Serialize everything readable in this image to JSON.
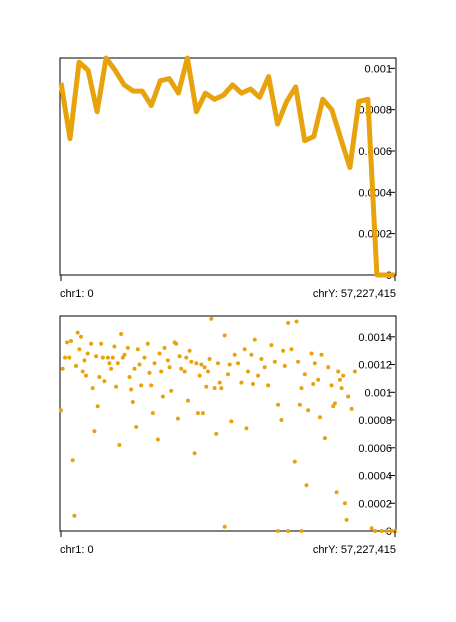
{
  "colors": {
    "series": "#E8A20C",
    "axis": "#000000",
    "background": "#ffffff"
  },
  "chart_data": [
    {
      "type": "line",
      "title": "",
      "x_start_label": "chr1: 0",
      "x_end_label": "chrY: 57,227,415",
      "ylim": [
        0,
        0.00105
      ],
      "y_ticks": [
        0,
        0.0002,
        0.0004,
        0.0006,
        0.0008,
        0.001
      ],
      "y_tick_labels": [
        "0",
        "0.0002",
        "0.0004",
        "0.0006",
        "0.0008",
        "0.001"
      ],
      "values": [
        0.00093,
        0.00066,
        0.00103,
        0.00099,
        0.00079,
        0.00105,
        0.00099,
        0.00092,
        0.00089,
        0.00089,
        0.00082,
        0.00094,
        0.00095,
        0.00088,
        0.00109,
        0.00079,
        0.00088,
        0.00085,
        0.00087,
        0.00092,
        0.00088,
        0.0009,
        0.00086,
        0.00096,
        0.00073,
        0.00084,
        0.00091,
        0.00065,
        0.00067,
        0.00085,
        0.0008,
        0.00066,
        0.00052,
        0.00084,
        0.00085,
        0.0,
        0.0,
        0.0
      ]
    },
    {
      "type": "scatter",
      "title": "",
      "x_start_label": "chr1: 0",
      "x_end_label": "chrY: 57,227,415",
      "ylim": [
        0,
        0.00155
      ],
      "y_ticks": [
        0,
        0.0002,
        0.0004,
        0.0006,
        0.0008,
        0.001,
        0.0012,
        0.0014
      ],
      "y_tick_labels": [
        "0",
        "0.0002",
        "0.0004",
        "0.0006",
        "0.0008",
        "0.001",
        "0.0012",
        "0.0014"
      ],
      "x_range": [
        0,
        1
      ],
      "points": [
        [
          0.0,
          0.00087
        ],
        [
          0.005,
          0.00117
        ],
        [
          0.012,
          0.00125
        ],
        [
          0.018,
          0.00136
        ],
        [
          0.025,
          0.00125
        ],
        [
          0.03,
          0.00137
        ],
        [
          0.035,
          0.00051
        ],
        [
          0.04,
          0.00011
        ],
        [
          0.045,
          0.00119
        ],
        [
          0.05,
          0.00143
        ],
        [
          0.055,
          0.00131
        ],
        [
          0.06,
          0.0014
        ],
        [
          0.065,
          0.00115
        ],
        [
          0.07,
          0.00123
        ],
        [
          0.075,
          0.00112
        ],
        [
          0.08,
          0.00128
        ],
        [
          0.09,
          0.00135
        ],
        [
          0.095,
          0.00103
        ],
        [
          0.1,
          0.00072
        ],
        [
          0.105,
          0.00126
        ],
        [
          0.11,
          0.0009
        ],
        [
          0.115,
          0.00111
        ],
        [
          0.12,
          0.00135
        ],
        [
          0.125,
          0.00125
        ],
        [
          0.13,
          0.00108
        ],
        [
          0.14,
          0.00125
        ],
        [
          0.145,
          0.00121
        ],
        [
          0.15,
          0.00117
        ],
        [
          0.155,
          0.00125
        ],
        [
          0.16,
          0.00133
        ],
        [
          0.165,
          0.00104
        ],
        [
          0.17,
          0.00121
        ],
        [
          0.175,
          0.00062
        ],
        [
          0.18,
          0.00142
        ],
        [
          0.185,
          0.00125
        ],
        [
          0.19,
          0.00127
        ],
        [
          0.2,
          0.00132
        ],
        [
          0.205,
          0.00111
        ],
        [
          0.21,
          0.00102
        ],
        [
          0.215,
          0.00093
        ],
        [
          0.22,
          0.00117
        ],
        [
          0.225,
          0.00075
        ],
        [
          0.23,
          0.00131
        ],
        [
          0.235,
          0.0012
        ],
        [
          0.24,
          0.00105
        ],
        [
          0.25,
          0.00125
        ],
        [
          0.26,
          0.00135
        ],
        [
          0.265,
          0.00114
        ],
        [
          0.27,
          0.00105
        ],
        [
          0.275,
          0.00085
        ],
        [
          0.28,
          0.00121
        ],
        [
          0.29,
          0.00066
        ],
        [
          0.295,
          0.00128
        ],
        [
          0.3,
          0.00115
        ],
        [
          0.305,
          0.00097
        ],
        [
          0.31,
          0.00132
        ],
        [
          0.32,
          0.00123
        ],
        [
          0.325,
          0.00118
        ],
        [
          0.33,
          0.00101
        ],
        [
          0.34,
          0.00136
        ],
        [
          0.345,
          0.00135
        ],
        [
          0.35,
          0.00081
        ],
        [
          0.355,
          0.00126
        ],
        [
          0.36,
          0.00117
        ],
        [
          0.37,
          0.00115
        ],
        [
          0.375,
          0.00125
        ],
        [
          0.38,
          0.00094
        ],
        [
          0.385,
          0.0013
        ],
        [
          0.39,
          0.00122
        ],
        [
          0.4,
          0.00056
        ],
        [
          0.405,
          0.00121
        ],
        [
          0.41,
          0.00085
        ],
        [
          0.415,
          0.00112
        ],
        [
          0.42,
          0.0012
        ],
        [
          0.425,
          0.00085
        ],
        [
          0.43,
          0.00118
        ],
        [
          0.435,
          0.00104
        ],
        [
          0.44,
          0.00115
        ],
        [
          0.445,
          0.00124
        ],
        [
          0.45,
          0.00153
        ],
        [
          0.46,
          0.00103
        ],
        [
          0.465,
          0.0007
        ],
        [
          0.47,
          0.00121
        ],
        [
          0.475,
          0.00107
        ],
        [
          0.48,
          0.00103
        ],
        [
          0.49,
          0.00141
        ],
        [
          0.5,
          0.00113
        ],
        [
          0.505,
          0.0012
        ],
        [
          0.51,
          0.00079
        ],
        [
          0.52,
          0.00127
        ],
        [
          0.53,
          0.00121
        ],
        [
          0.54,
          0.00107
        ],
        [
          0.55,
          0.00131
        ],
        [
          0.555,
          0.00074
        ],
        [
          0.56,
          0.00115
        ],
        [
          0.57,
          0.00127
        ],
        [
          0.575,
          0.00106
        ],
        [
          0.58,
          0.00138
        ],
        [
          0.59,
          0.00112
        ],
        [
          0.6,
          0.00124
        ],
        [
          0.61,
          0.00118
        ],
        [
          0.62,
          0.00105
        ],
        [
          0.63,
          0.00134
        ],
        [
          0.64,
          0.00122
        ],
        [
          0.65,
          0.00091
        ],
        [
          0.66,
          0.0008
        ],
        [
          0.665,
          0.0013
        ],
        [
          0.67,
          0.00119
        ],
        [
          0.68,
          0.0015
        ],
        [
          0.69,
          0.00131
        ],
        [
          0.7,
          0.0005
        ],
        [
          0.705,
          0.00151
        ],
        [
          0.71,
          0.00122
        ],
        [
          0.715,
          0.00091
        ],
        [
          0.72,
          0.00103
        ],
        [
          0.73,
          0.00113
        ],
        [
          0.735,
          0.00033
        ],
        [
          0.74,
          0.00087
        ],
        [
          0.75,
          0.00128
        ],
        [
          0.755,
          0.00106
        ],
        [
          0.76,
          0.00121
        ],
        [
          0.77,
          0.00109
        ],
        [
          0.775,
          0.00082
        ],
        [
          0.78,
          0.00127
        ],
        [
          0.79,
          0.00067
        ],
        [
          0.8,
          0.00118
        ],
        [
          0.81,
          0.00105
        ],
        [
          0.815,
          0.0009
        ],
        [
          0.82,
          0.00092
        ],
        [
          0.825,
          0.00028
        ],
        [
          0.83,
          0.00115
        ],
        [
          0.835,
          0.00109
        ],
        [
          0.84,
          0.00103
        ],
        [
          0.845,
          0.00112
        ],
        [
          0.85,
          0.0002
        ],
        [
          0.855,
          8e-05
        ],
        [
          0.86,
          0.00097
        ],
        [
          0.87,
          0.00088
        ],
        [
          0.88,
          0.00115
        ],
        [
          0.49,
          3e-05
        ],
        [
          0.65,
          0.0
        ],
        [
          0.68,
          0.0
        ],
        [
          0.72,
          0.0
        ],
        [
          0.93,
          2e-05
        ],
        [
          0.94,
          0.0
        ],
        [
          0.96,
          0.0
        ],
        [
          0.975,
          0.0
        ],
        [
          0.99,
          0.0
        ],
        [
          1.0,
          0.0
        ]
      ]
    }
  ]
}
